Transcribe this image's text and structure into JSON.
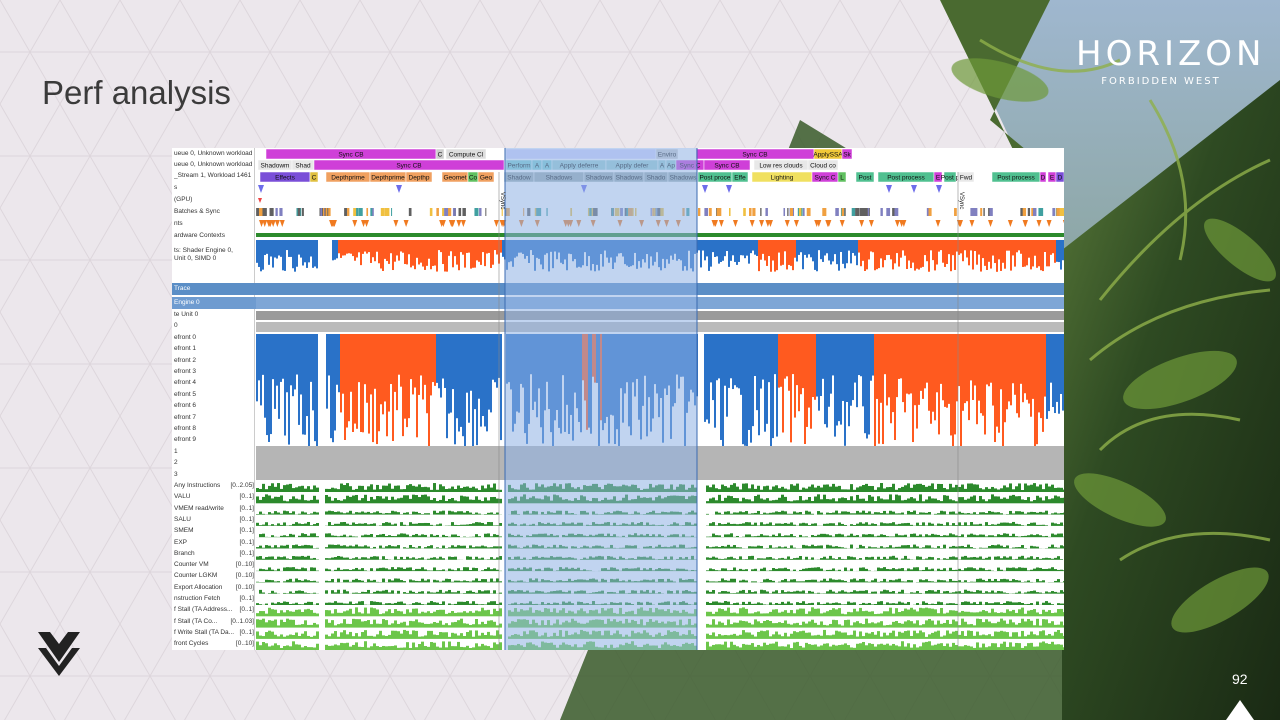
{
  "slide": {
    "title": "Perf analysis",
    "page_number": "92",
    "logo": {
      "main": "HORIZON",
      "sub": "FORBIDDEN WEST"
    }
  },
  "profiler": {
    "queue_labels": [
      "ueue 0, Unknown workload",
      "ueue 0, Unknown workload",
      "_Stream 1, Workload 1461"
    ],
    "top_labels": [
      "s",
      "(GPU)",
      "Batches & Sync",
      "nts",
      "ardware Contexts",
      "ts: Shader Engine 0,",
      "Unit 0, SIMD 0"
    ],
    "trace_labels": [
      "Trace",
      "Engine 0",
      "te Unit 0",
      "0",
      "efront 0",
      "efront 1",
      "efront 2",
      "efront 3",
      "efront 4",
      "efront 5",
      "efront 6",
      "efront 7",
      "efront 8",
      "efront 9",
      "1",
      "2",
      "3"
    ],
    "counters": [
      {
        "name": "Any Instructions",
        "range": "[0..2.05]"
      },
      {
        "name": "VALU",
        "range": "[0..1]"
      },
      {
        "name": "VMEM read/write",
        "range": "[0..1]"
      },
      {
        "name": "SALU",
        "range": "[0..1]"
      },
      {
        "name": "SMEM",
        "range": "[0..1]"
      },
      {
        "name": "EXP",
        "range": "[0..1]"
      },
      {
        "name": "Branch",
        "range": "[0..1]"
      },
      {
        "name": "Counter VM",
        "range": "[0..10]"
      },
      {
        "name": "Counter LGKM",
        "range": "[0..10]"
      },
      {
        "name": "Export Allocation",
        "range": "[0..10]"
      },
      {
        "name": "nstruction Fetch",
        "range": "[0..1]"
      },
      {
        "name": "f Stall (TA Address...",
        "range": "[0..1]"
      },
      {
        "name": "f Stall (TA Co...",
        "range": "[0..1.03]"
      },
      {
        "name": "f Write Stall (TA Da...",
        "range": "[0..1]"
      },
      {
        "name": "front Cycles",
        "range": "[0..10]"
      }
    ],
    "row1_events": [
      "Sync CB",
      "C",
      "Compute Cl",
      "Enviro",
      "Sync CB",
      "ApplySSA",
      "Sk"
    ],
    "row2_events": [
      "Shadowm",
      "Shad",
      "Sync CB",
      "Perform",
      "A",
      "A",
      "Apply deferre",
      "Apply defer",
      "A",
      "Ap",
      "Sync C",
      "Sync CB",
      "Low res clouds",
      "Cloud co"
    ],
    "row3_events": [
      "Effects",
      "C",
      "Depthprime",
      "Depthprime",
      "Depthp",
      "Geomet",
      "Co",
      "Geo",
      "Shadow",
      "Shadows",
      "Shadows",
      "Shadows",
      "Shado",
      "Shadows",
      "Post proce",
      "Effe",
      "Lighting",
      "Sync C",
      "L",
      "Post",
      "Post process",
      "E",
      "Post p",
      "Fwd",
      "Post process",
      "D",
      "E",
      "D"
    ],
    "vsync_labels": [
      "VSync",
      "VSync"
    ]
  },
  "colors": {
    "blue": "#2a72c8",
    "orange": "#ff5a1f",
    "green": "#2c8a2c",
    "magenta": "#cf3fd8",
    "purple": "#7a4fd8",
    "selection": "#8eb1e4",
    "trace_header": "#5b8ec6"
  }
}
